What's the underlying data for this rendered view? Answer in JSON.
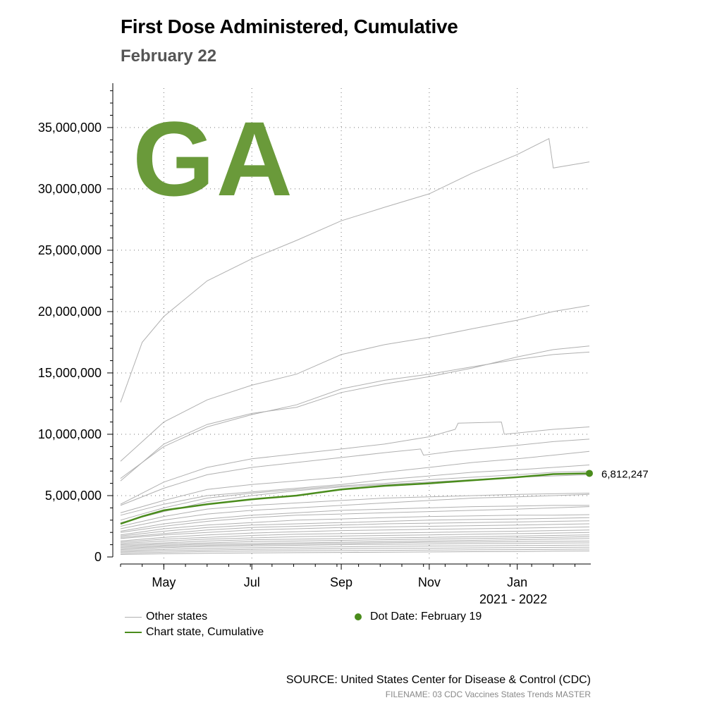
{
  "header": {
    "title": "First Dose Administered, Cumulative",
    "subtitle": "February 22",
    "state": "GA"
  },
  "legend": {
    "other_states": "Other states",
    "chart_state": "Chart state, Cumulative",
    "dot_date": "Dot Date: February 19"
  },
  "footer": {
    "source": "SOURCE: United States Center for Disease & Control (CDC)",
    "filename": "FILENAME: 03 CDC Vaccines States Trends MASTER"
  },
  "colors": {
    "chart_state": "#4a8c1c",
    "other_states": "#b0b0b0",
    "state_label": "#6a9a3a"
  },
  "chart_data": {
    "type": "line",
    "title": "First Dose Administered, Cumulative",
    "subtitle": "February 22",
    "xlabel": "2021 - 2022",
    "ylabel": "",
    "x_ticks": [
      "May",
      "Jul",
      "Sep",
      "Nov",
      "Jan"
    ],
    "x_tick_days": [
      30,
      91,
      153,
      214,
      275
    ],
    "x_range_days": [
      0,
      325
    ],
    "ylim": [
      0,
      38500000
    ],
    "y_ticks": [
      0,
      5000000,
      10000000,
      15000000,
      20000000,
      25000000,
      30000000,
      35000000
    ],
    "y_tick_labels": [
      "0",
      "5,000,000",
      "10,000,000",
      "15,000,000",
      "20,000,000",
      "25,000,000",
      "30,000,000",
      "35,000,000"
    ],
    "grid": true,
    "chart_state": {
      "name": "GA",
      "x": [
        0,
        15,
        30,
        60,
        91,
        122,
        153,
        183,
        214,
        244,
        275,
        300,
        325
      ],
      "values": [
        2700000,
        3300000,
        3800000,
        4300000,
        4700000,
        5000000,
        5500000,
        5800000,
        6000000,
        6250000,
        6500000,
        6750000,
        6812247
      ]
    },
    "dot": {
      "label": "6,812,247",
      "x": 325,
      "value": 6812247
    },
    "other_states": [
      {
        "x": [
          0,
          15,
          30,
          60,
          91,
          122,
          153,
          183,
          214,
          244,
          275,
          297,
          300,
          325
        ],
        "values": [
          12600000,
          17500000,
          19600000,
          22500000,
          24300000,
          25800000,
          27400000,
          28500000,
          29600000,
          31300000,
          32800000,
          34100000,
          31700000,
          32200000
        ]
      },
      {
        "x": [
          0,
          30,
          60,
          91,
          122,
          153,
          183,
          214,
          244,
          275,
          300,
          325
        ],
        "values": [
          7800000,
          11000000,
          12800000,
          14000000,
          14900000,
          16500000,
          17300000,
          17900000,
          18600000,
          19300000,
          20000000,
          20500000
        ]
      },
      {
        "x": [
          0,
          30,
          60,
          91,
          122,
          153,
          183,
          214,
          244,
          275,
          300,
          325
        ],
        "values": [
          6200000,
          9200000,
          10800000,
          11700000,
          12200000,
          13400000,
          14100000,
          14700000,
          15400000,
          16300000,
          16900000,
          17200000
        ]
      },
      {
        "x": [
          0,
          30,
          60,
          91,
          122,
          153,
          183,
          214,
          244,
          275,
          300,
          325
        ],
        "values": [
          6400000,
          9000000,
          10600000,
          11600000,
          12400000,
          13700000,
          14400000,
          14900000,
          15500000,
          16100000,
          16500000,
          16700000
        ]
      },
      {
        "x": [
          0,
          30,
          60,
          91,
          122,
          153,
          183,
          214,
          232,
          234,
          264,
          266,
          300,
          325
        ],
        "values": [
          4300000,
          6100000,
          7300000,
          8000000,
          8400000,
          8800000,
          9200000,
          9800000,
          10400000,
          10900000,
          11000000,
          10000000,
          10400000,
          10600000
        ]
      },
      {
        "x": [
          0,
          30,
          60,
          91,
          122,
          153,
          183,
          208,
          210,
          230,
          275,
          300,
          325
        ],
        "values": [
          4200000,
          5600000,
          6700000,
          7300000,
          7700000,
          8100000,
          8500000,
          8800000,
          8300000,
          8600000,
          9100000,
          9400000,
          9600000
        ]
      },
      {
        "x": [
          0,
          30,
          60,
          91,
          122,
          153,
          183,
          214,
          244,
          275,
          300,
          325
        ],
        "values": [
          3600000,
          4600000,
          5500000,
          5900000,
          6200000,
          6500000,
          6900000,
          7300000,
          7700000,
          8000000,
          8300000,
          8600000
        ]
      },
      {
        "x": [
          0,
          30,
          60,
          91,
          122,
          153,
          183,
          214,
          244,
          275,
          300,
          325
        ],
        "values": [
          3400000,
          4300000,
          5000000,
          5300000,
          5600000,
          5900000,
          6300000,
          6600000,
          6900000,
          7100000,
          7300000,
          7500000
        ]
      },
      {
        "x": [
          0,
          30,
          60,
          91,
          122,
          153,
          183,
          214,
          244,
          275,
          300,
          325
        ],
        "values": [
          3000000,
          4000000,
          4800000,
          5200000,
          5500000,
          5800000,
          6000000,
          6300000,
          6500000,
          6700000,
          6900000,
          7000000
        ]
      },
      {
        "x": [
          0,
          30,
          60,
          91,
          122,
          153,
          183,
          214,
          244,
          275,
          300,
          325
        ],
        "values": [
          2800000,
          3700000,
          4500000,
          5000000,
          5400000,
          5700000,
          5900000,
          6100000,
          6300000,
          6500000,
          6600000,
          6700000
        ]
      },
      {
        "x": [
          0,
          30,
          60,
          91,
          122,
          153,
          183,
          214,
          244,
          275,
          300,
          325
        ],
        "values": [
          2500000,
          3300000,
          3900000,
          4200000,
          4400000,
          4600000,
          4800000,
          4900000,
          5000000,
          5100000,
          5150000,
          5200000
        ]
      },
      {
        "x": [
          0,
          30,
          60,
          91,
          122,
          153,
          183,
          214,
          244,
          275,
          300,
          325
        ],
        "values": [
          2300000,
          3000000,
          3500000,
          3800000,
          4000000,
          4200000,
          4400000,
          4600000,
          4800000,
          4900000,
          5000000,
          5100000
        ]
      },
      {
        "x": [
          0,
          30,
          60,
          91,
          122,
          153,
          183,
          214,
          244,
          275,
          300,
          325
        ],
        "values": [
          2100000,
          2700000,
          3100000,
          3400000,
          3600000,
          3800000,
          3900000,
          4000000,
          4100000,
          4150000,
          4200000,
          4200000
        ]
      },
      {
        "x": [
          0,
          30,
          60,
          91,
          122,
          153,
          183,
          214,
          244,
          275,
          300,
          325
        ],
        "values": [
          2000000,
          2500000,
          2900000,
          3200000,
          3400000,
          3500000,
          3600000,
          3700000,
          3800000,
          3900000,
          4000000,
          4100000
        ]
      },
      {
        "x": [
          0,
          30,
          60,
          91,
          122,
          153,
          183,
          214,
          244,
          275,
          300,
          325
        ],
        "values": [
          1800000,
          2300000,
          2600000,
          2800000,
          3000000,
          3100000,
          3200000,
          3300000,
          3350000,
          3400000,
          3400000,
          3450000
        ]
      },
      {
        "x": [
          0,
          30,
          60,
          91,
          122,
          153,
          183,
          214,
          244,
          275,
          300,
          325
        ],
        "values": [
          1700000,
          2100000,
          2400000,
          2600000,
          2700000,
          2800000,
          2900000,
          3000000,
          3050000,
          3100000,
          3150000,
          3200000
        ]
      },
      {
        "x": [
          0,
          30,
          60,
          91,
          122,
          153,
          183,
          214,
          244,
          275,
          300,
          325
        ],
        "values": [
          1600000,
          1900000,
          2200000,
          2400000,
          2500000,
          2600000,
          2700000,
          2750000,
          2800000,
          2850000,
          2900000,
          2950000
        ]
      },
      {
        "x": [
          0,
          30,
          60,
          91,
          122,
          153,
          183,
          214,
          244,
          275,
          300,
          325
        ],
        "values": [
          1500000,
          1800000,
          2000000,
          2200000,
          2300000,
          2400000,
          2450000,
          2500000,
          2550000,
          2600000,
          2650000,
          2700000
        ]
      },
      {
        "x": [
          0,
          30,
          60,
          91,
          122,
          153,
          183,
          214,
          244,
          275,
          300,
          325
        ],
        "values": [
          1300000,
          1600000,
          1800000,
          1950000,
          2050000,
          2150000,
          2200000,
          2250000,
          2300000,
          2350000,
          2400000,
          2450000
        ]
      },
      {
        "x": [
          0,
          30,
          60,
          91,
          122,
          153,
          183,
          214,
          244,
          275,
          300,
          325
        ],
        "values": [
          1200000,
          1450000,
          1600000,
          1750000,
          1850000,
          1900000,
          1950000,
          2000000,
          2050000,
          2100000,
          2150000,
          2200000
        ]
      },
      {
        "x": [
          0,
          30,
          60,
          91,
          122,
          153,
          183,
          214,
          244,
          275,
          300,
          325
        ],
        "values": [
          1100000,
          1300000,
          1450000,
          1550000,
          1650000,
          1700000,
          1750000,
          1800000,
          1850000,
          1900000,
          1950000,
          2000000
        ]
      },
      {
        "x": [
          0,
          30,
          60,
          91,
          122,
          153,
          183,
          214,
          244,
          275,
          300,
          325
        ],
        "values": [
          1000000,
          1150000,
          1300000,
          1400000,
          1450000,
          1500000,
          1550000,
          1600000,
          1650000,
          1700000,
          1750000,
          1800000
        ]
      },
      {
        "x": [
          0,
          30,
          60,
          91,
          122,
          153,
          183,
          214,
          244,
          275,
          300,
          325
        ],
        "values": [
          900000,
          1050000,
          1150000,
          1250000,
          1300000,
          1350000,
          1400000,
          1450000,
          1500000,
          1550000,
          1600000,
          1650000
        ]
      },
      {
        "x": [
          0,
          30,
          60,
          91,
          122,
          153,
          183,
          214,
          244,
          275,
          300,
          325
        ],
        "values": [
          800000,
          950000,
          1050000,
          1100000,
          1150000,
          1200000,
          1250000,
          1300000,
          1350000,
          1400000,
          1450000,
          1500000
        ]
      },
      {
        "x": [
          0,
          30,
          60,
          91,
          122,
          153,
          183,
          214,
          244,
          275,
          300,
          325
        ],
        "values": [
          700000,
          850000,
          950000,
          1000000,
          1050000,
          1100000,
          1150000,
          1200000,
          1220000,
          1250000,
          1280000,
          1300000
        ]
      },
      {
        "x": [
          0,
          30,
          60,
          91,
          122,
          153,
          183,
          214,
          244,
          275,
          300,
          325
        ],
        "values": [
          600000,
          750000,
          850000,
          900000,
          950000,
          1000000,
          1030000,
          1060000,
          1090000,
          1110000,
          1130000,
          1150000
        ]
      },
      {
        "x": [
          0,
          30,
          60,
          91,
          122,
          153,
          183,
          214,
          244,
          275,
          300,
          325
        ],
        "values": [
          500000,
          620000,
          700000,
          750000,
          790000,
          830000,
          860000,
          890000,
          910000,
          930000,
          950000,
          970000
        ]
      },
      {
        "x": [
          0,
          30,
          60,
          91,
          122,
          153,
          183,
          214,
          244,
          275,
          300,
          325
        ],
        "values": [
          400000,
          500000,
          570000,
          620000,
          650000,
          680000,
          700000,
          720000,
          740000,
          760000,
          780000,
          800000
        ]
      },
      {
        "x": [
          0,
          30,
          60,
          91,
          122,
          153,
          183,
          214,
          244,
          275,
          300,
          325
        ],
        "values": [
          300000,
          380000,
          440000,
          480000,
          500000,
          520000,
          540000,
          560000,
          580000,
          600000,
          620000,
          640000
        ]
      },
      {
        "x": [
          0,
          30,
          60,
          91,
          122,
          153,
          183,
          214,
          244,
          275,
          300,
          325
        ],
        "values": [
          200000,
          260000,
          300000,
          330000,
          350000,
          370000,
          390000,
          410000,
          430000,
          450000,
          470000,
          490000
        ]
      }
    ]
  }
}
